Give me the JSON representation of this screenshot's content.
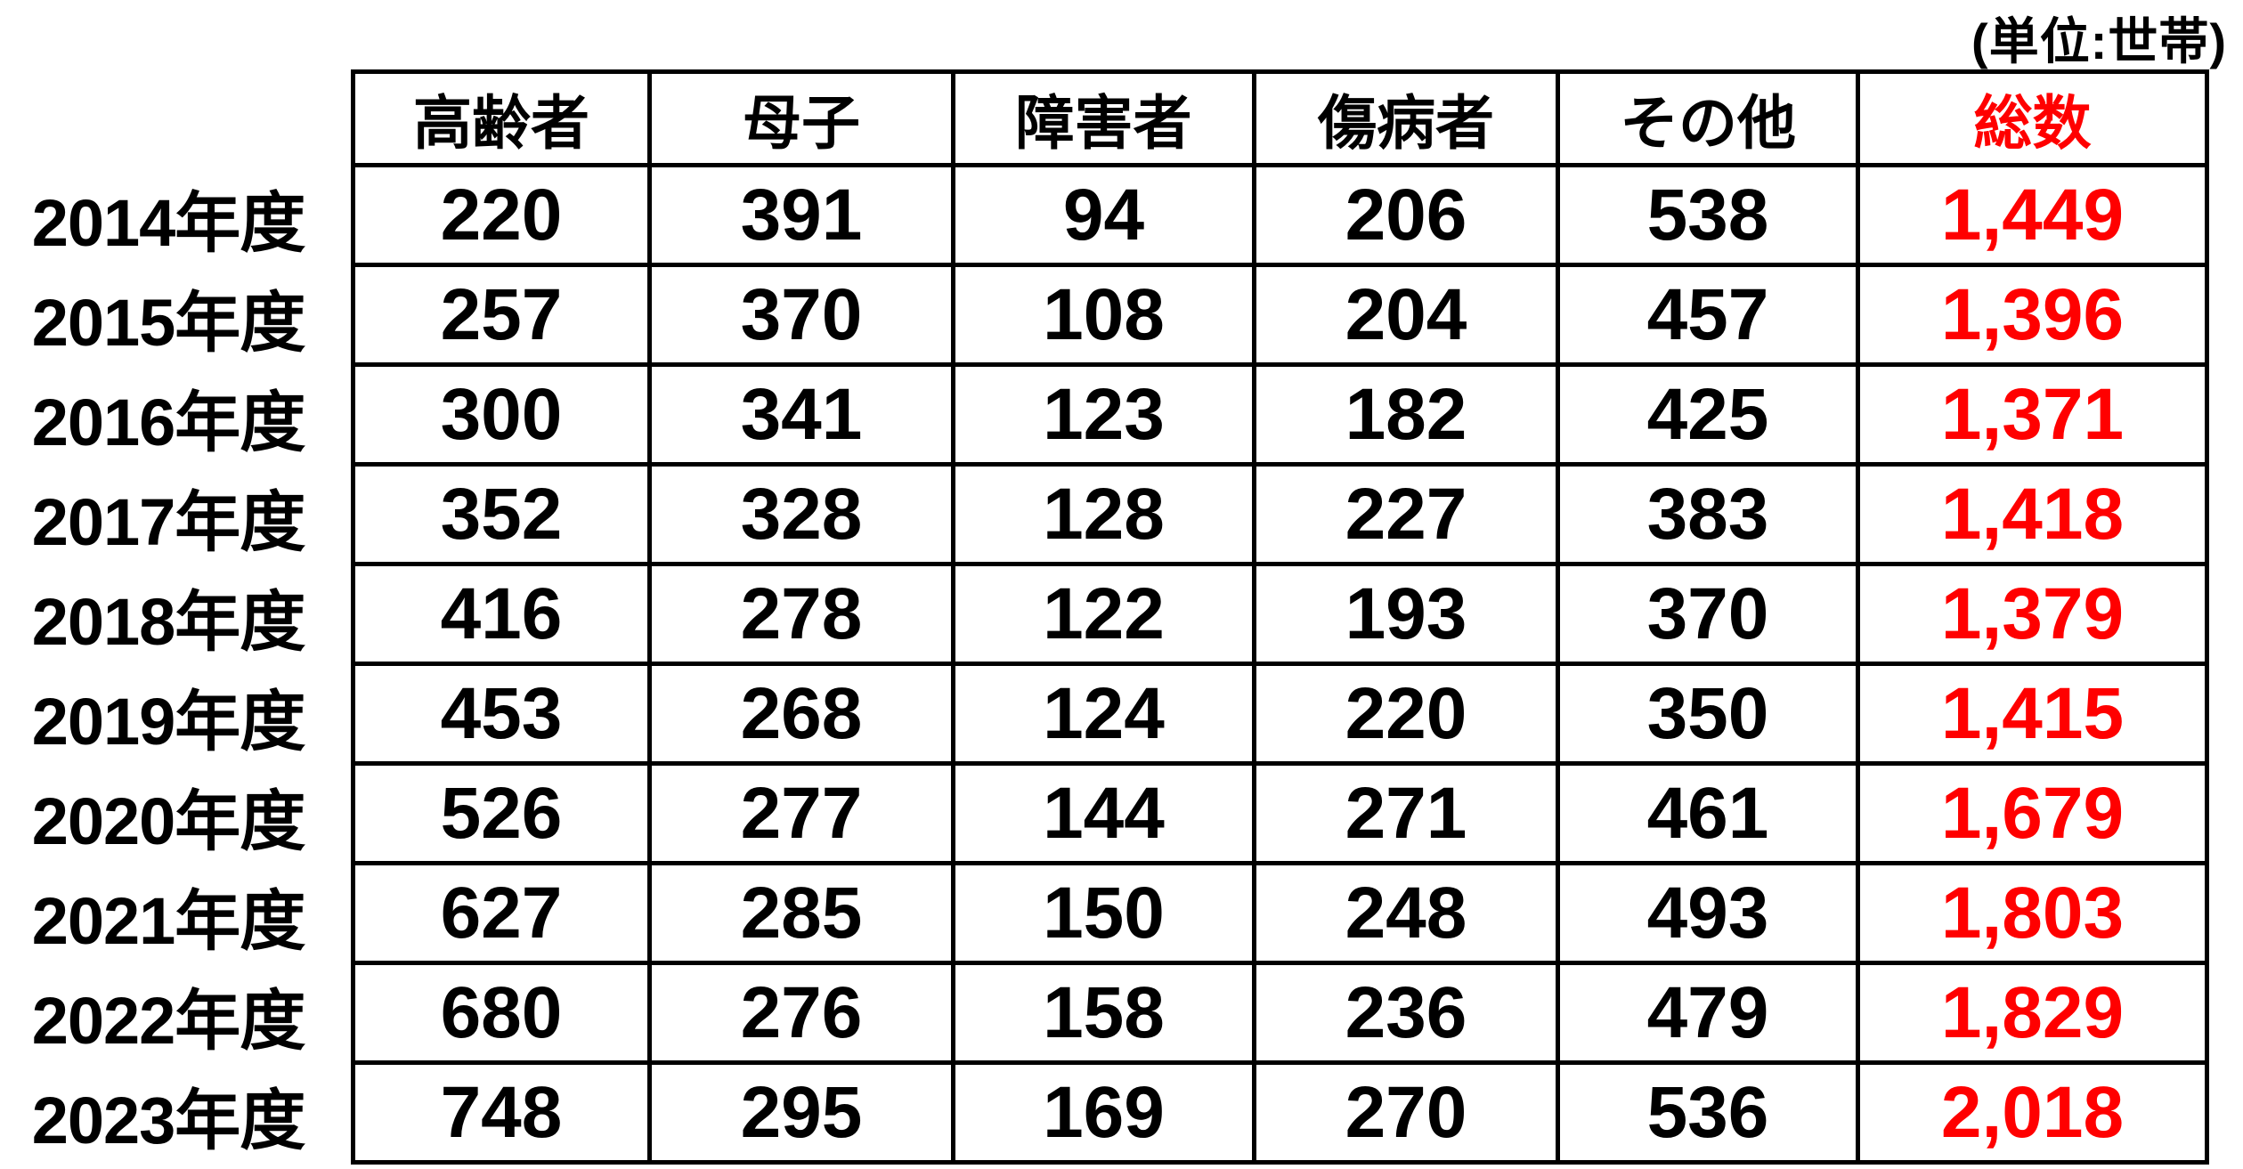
{
  "unit_note": "(単位:世帯)",
  "colors": {
    "text": "#000000",
    "total_accent": "#ff0000",
    "border": "#000000",
    "background": "#ffffff"
  },
  "chart_data": {
    "type": "table",
    "title": "",
    "unit_note": "(単位:世帯)",
    "columns": [
      "高齢者",
      "母子",
      "障害者",
      "傷病者",
      "その他",
      "総数"
    ],
    "rows": [
      {
        "year": "2014年度",
        "values": [
          220,
          391,
          94,
          206,
          538
        ],
        "total": "1,449"
      },
      {
        "year": "2015年度",
        "values": [
          257,
          370,
          108,
          204,
          457
        ],
        "total": "1,396"
      },
      {
        "year": "2016年度",
        "values": [
          300,
          341,
          123,
          182,
          425
        ],
        "total": "1,371"
      },
      {
        "year": "2017年度",
        "values": [
          352,
          328,
          128,
          227,
          383
        ],
        "total": "1,418"
      },
      {
        "year": "2018年度",
        "values": [
          416,
          278,
          122,
          193,
          370
        ],
        "total": "1,379"
      },
      {
        "year": "2019年度",
        "values": [
          453,
          268,
          124,
          220,
          350
        ],
        "total": "1,415"
      },
      {
        "year": "2020年度",
        "values": [
          526,
          277,
          144,
          271,
          461
        ],
        "total": "1,679"
      },
      {
        "year": "2021年度",
        "values": [
          627,
          285,
          150,
          248,
          493
        ],
        "total": "1,803"
      },
      {
        "year": "2022年度",
        "values": [
          680,
          276,
          158,
          236,
          479
        ],
        "total": "1,829"
      },
      {
        "year": "2023年度",
        "values": [
          748,
          295,
          169,
          270,
          536
        ],
        "total": "2,018"
      }
    ]
  }
}
